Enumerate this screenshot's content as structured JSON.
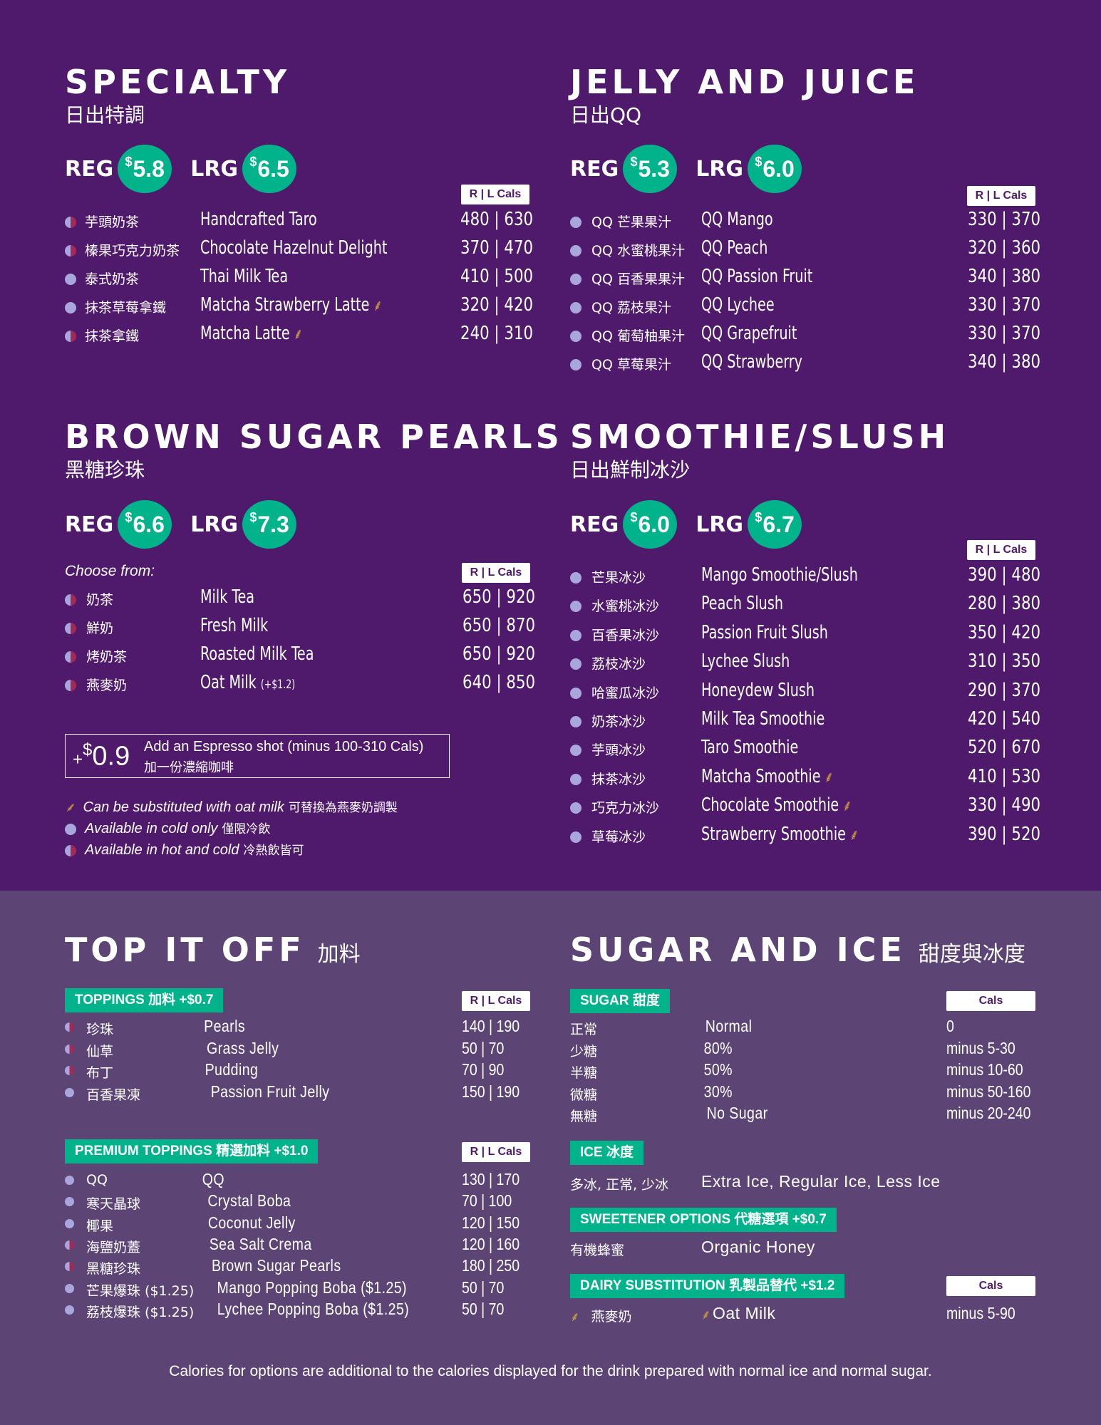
{
  "specialty": {
    "title": "SPECIALTY",
    "subtitle": "日出特調",
    "reg_label": "REG",
    "reg_price": "5.8",
    "lrg_label": "LRG",
    "lrg_price": "6.5",
    "cals_label": "R | L Cals",
    "items": [
      {
        "zh": "芋頭奶茶",
        "en": "Handcrafted Taro",
        "cals": "480 | 630",
        "temp": "hot-cold",
        "oat": false
      },
      {
        "zh": "榛果巧克力奶茶",
        "en": "Chocolate Hazelnut Delight",
        "cals": "370 | 470",
        "temp": "hot-cold",
        "oat": false
      },
      {
        "zh": "泰式奶茶",
        "en": "Thai Milk Tea",
        "cals": "410 | 500",
        "temp": "cold",
        "oat": false
      },
      {
        "zh": "抹茶草莓拿鐵",
        "en": "Matcha Strawberry Latte",
        "cals": "320 | 420",
        "temp": "cold",
        "oat": true
      },
      {
        "zh": "抹茶拿鐵",
        "en": "Matcha Latte",
        "cals": "240 | 310",
        "temp": "hot-cold",
        "oat": true
      }
    ]
  },
  "jelly": {
    "title": "JELLY AND JUICE",
    "subtitle": "日出QQ",
    "reg_label": "REG",
    "reg_price": "5.3",
    "lrg_label": "LRG",
    "lrg_price": "6.0",
    "cals_label": "R | L Cals",
    "items": [
      {
        "zh": "QQ 芒果果汁",
        "en": "QQ Mango",
        "cals": "330 | 370"
      },
      {
        "zh": "QQ 水蜜桃果汁",
        "en": "QQ Peach",
        "cals": "320 | 360"
      },
      {
        "zh": "QQ 百香果果汁",
        "en": "QQ Passion Fruit",
        "cals": "340 | 380"
      },
      {
        "zh": "QQ 荔枝果汁",
        "en": "QQ Lychee",
        "cals": "330 | 370"
      },
      {
        "zh": "QQ 葡萄柚果汁",
        "en": "QQ Grapefruit",
        "cals": "330 | 370"
      },
      {
        "zh": "QQ 草莓果汁",
        "en": "QQ Strawberry",
        "cals": "340 | 380"
      }
    ]
  },
  "brown": {
    "title": "BROWN SUGAR PEARLS",
    "subtitle": "黑糖珍珠",
    "reg_label": "REG",
    "reg_price": "6.6",
    "lrg_label": "LRG",
    "lrg_price": "7.3",
    "choose": "Choose from:",
    "cals_label": "R | L Cals",
    "items": [
      {
        "zh": "奶茶",
        "en": "Milk Tea",
        "extra": "",
        "cals": "650 | 920"
      },
      {
        "zh": "鮮奶",
        "en": "Fresh Milk",
        "extra": "",
        "cals": "650 | 870"
      },
      {
        "zh": "烤奶茶",
        "en": "Roasted Milk Tea",
        "extra": "",
        "cals": "650 | 920"
      },
      {
        "zh": "燕麥奶",
        "en": "Oat Milk",
        "extra": "(+$1.2)",
        "cals": "640 | 850"
      }
    ],
    "espresso_plus": "+",
    "espresso_dollar": "$",
    "espresso_amount": "0.9",
    "espresso_en": "Add an Espresso shot (minus 100-310 Cals)",
    "espresso_zh": "加一份濃縮咖啡"
  },
  "legend": {
    "oat_en": "Can be substituted with oat milk",
    "oat_zh": "可替換為燕麥奶調製",
    "cold_en": "Available in cold only",
    "cold_zh": "僅限冷飲",
    "hot_en": "Available in hot and cold",
    "hot_zh": "冷熱飲皆可"
  },
  "smoothie": {
    "title": "SMOOTHIE/SLUSH",
    "subtitle": "日出鮮制冰沙",
    "reg_label": "REG",
    "reg_price": "6.0",
    "lrg_label": "LRG",
    "lrg_price": "6.7",
    "cals_label": "R | L Cals",
    "items": [
      {
        "zh": "芒果冰沙",
        "en": "Mango Smoothie/Slush",
        "cals": "390 | 480",
        "oat": false
      },
      {
        "zh": "水蜜桃冰沙",
        "en": "Peach Slush",
        "cals": "280 | 380",
        "oat": false
      },
      {
        "zh": "百香果冰沙",
        "en": "Passion Fruit Slush",
        "cals": "350 | 420",
        "oat": false
      },
      {
        "zh": "荔枝冰沙",
        "en": "Lychee Slush",
        "cals": "310 | 350",
        "oat": false
      },
      {
        "zh": "哈蜜瓜冰沙",
        "en": "Honeydew Slush",
        "cals": "290 | 370",
        "oat": false
      },
      {
        "zh": "奶茶冰沙",
        "en": "Milk Tea Smoothie",
        "cals": "420 | 540",
        "oat": false
      },
      {
        "zh": "芋頭冰沙",
        "en": "Taro Smoothie",
        "cals": "520 | 670",
        "oat": false
      },
      {
        "zh": "抹茶冰沙",
        "en": "Matcha Smoothie",
        "cals": "410 | 530",
        "oat": true
      },
      {
        "zh": "巧克力冰沙",
        "en": "Chocolate Smoothie",
        "cals": "330 | 490",
        "oat": true
      },
      {
        "zh": "草莓冰沙",
        "en": "Strawberry Smoothie",
        "cals": "390 | 520",
        "oat": true
      }
    ]
  },
  "topitoff": {
    "title": "TOP IT OFF",
    "subtitle": "加料",
    "toppings_tag": "TOPPINGS 加料 +$0.7",
    "cals_label": "R | L Cals",
    "toppings": [
      {
        "zh": "珍珠",
        "en": "Pearls",
        "cals": "140 | 190",
        "temp": "hot-cold"
      },
      {
        "zh": "仙草",
        "en": "Grass Jelly",
        "cals": "50 | 70",
        "temp": "hot-cold"
      },
      {
        "zh": "布丁",
        "en": "Pudding",
        "cals": "70 | 90",
        "temp": "hot-cold"
      },
      {
        "zh": "百香果凍",
        "en": "Passion Fruit Jelly",
        "cals": "150 | 190",
        "temp": "cold"
      }
    ],
    "premium_tag": "PREMIUM TOPPINGS 精選加料 +$1.0",
    "premium": [
      {
        "zh": "QQ",
        "en": "QQ",
        "cals": "130 | 170",
        "temp": "cold"
      },
      {
        "zh": "寒天晶球",
        "en": "Crystal Boba",
        "cals": "70 | 100",
        "temp": "cold"
      },
      {
        "zh": "椰果",
        "en": "Coconut Jelly",
        "cals": "120 | 150",
        "temp": "cold"
      },
      {
        "zh": "海鹽奶蓋",
        "en": "Sea Salt Crema",
        "cals": "120 | 160",
        "temp": "hot-cold"
      },
      {
        "zh": "黑糖珍珠",
        "en": "Brown Sugar Pearls",
        "cals": "180 | 250",
        "temp": "hot-cold"
      },
      {
        "zh": "芒果爆珠 ($1.25)",
        "en": "Mango Popping Boba ($1.25)",
        "cals": "50 | 70",
        "temp": "cold"
      },
      {
        "zh": "荔枝爆珠 ($1.25)",
        "en": "Lychee Popping Boba ($1.25)",
        "cals": "50 | 70",
        "temp": "cold"
      }
    ]
  },
  "sugarice": {
    "title": "SUGAR AND ICE",
    "subtitle": "甜度與冰度",
    "sugar_tag": "SUGAR 甜度",
    "cals_label": "Cals",
    "sugar": [
      {
        "zh": "正常",
        "en": "Normal",
        "cals": "0"
      },
      {
        "zh": "少糖",
        "en": "80%",
        "cals": "minus 5-30"
      },
      {
        "zh": "半糖",
        "en": "50%",
        "cals": "minus 10-60"
      },
      {
        "zh": "微糖",
        "en": "30%",
        "cals": "minus 50-160"
      },
      {
        "zh": "無糖",
        "en": "No Sugar",
        "cals": "minus 20-240"
      }
    ],
    "ice_tag": "ICE 冰度",
    "ice_zh": "多冰, 正常, 少冰",
    "ice_en": "Extra Ice, Regular Ice, Less Ice",
    "sweetener_tag": "SWEETENER OPTIONS 代糖選項 +$0.7",
    "sweetener_zh": "有機蜂蜜",
    "sweetener_en": "Organic Honey",
    "dairy_tag": "DAIRY SUBSTITUTION 乳製品替代 +$1.2",
    "dairy_cals_label": "Cals",
    "dairy_zh": "燕麥奶",
    "dairy_en": "Oat Milk",
    "dairy_cals": "minus 5-90"
  },
  "footer": "Calories for options are additional to the calories displayed for the drink prepared with normal ice and normal sugar.",
  "colors": {
    "bg_top": "#4f1a6b",
    "bg_bottom": "#5c4575",
    "accent": "#00b38a",
    "cold_dot": "#a9a6de",
    "hot_dot": "#a22a55",
    "wheat": "#d6a53c"
  }
}
